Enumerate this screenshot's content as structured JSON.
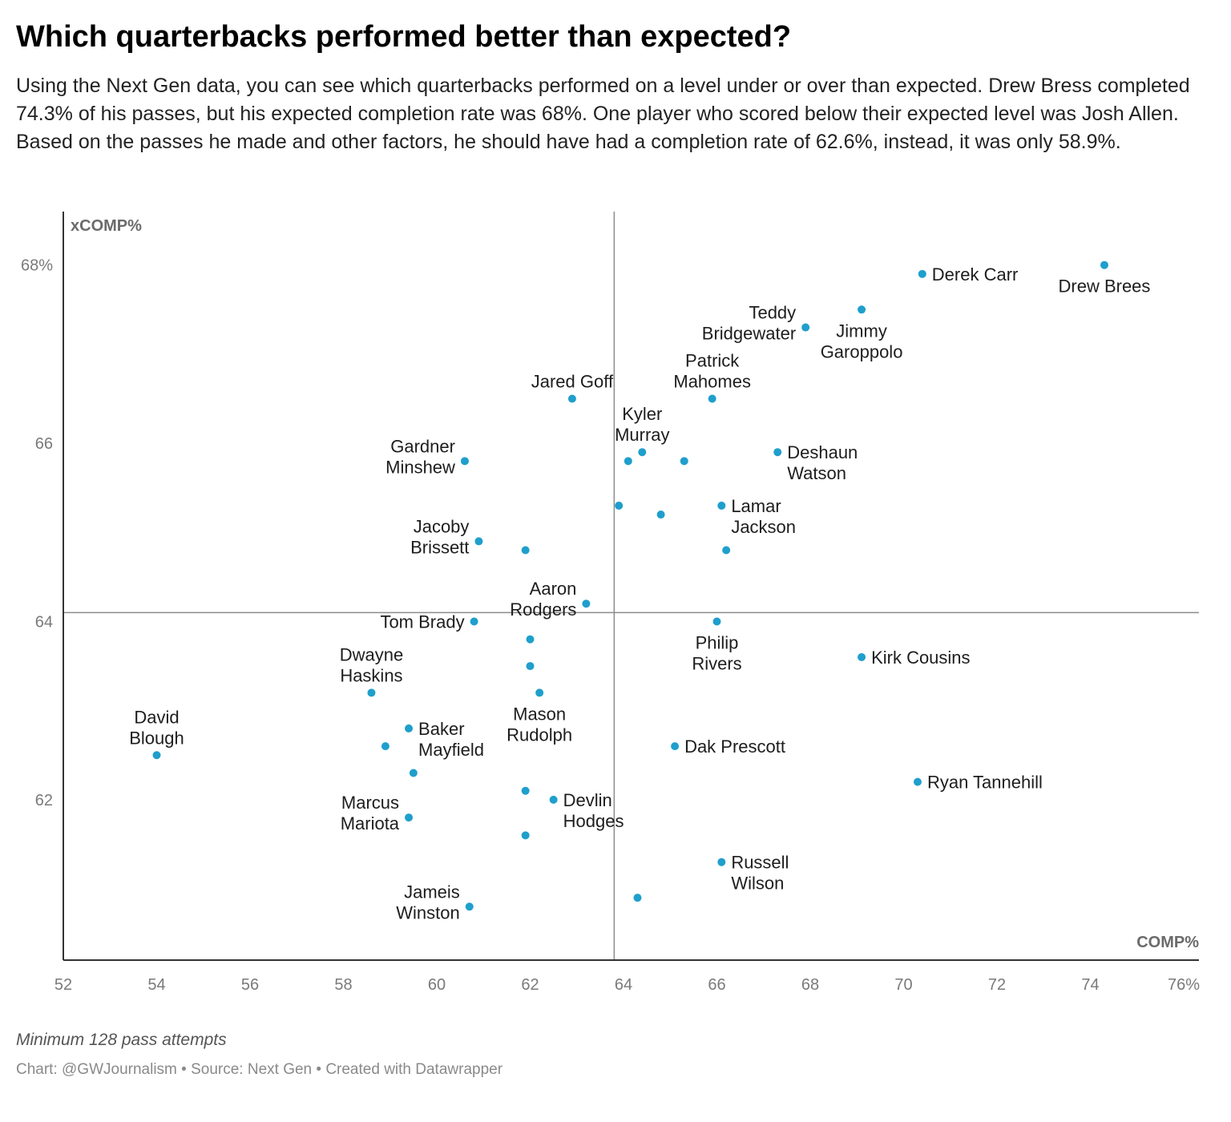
{
  "header": {
    "title": "Which quarterbacks performed better than expected?",
    "description": "Using the Next Gen data, you can see which quarterbacks performed on a level under or over than expected. Drew Bress completed 74.3% of his passes, but his expected completion rate was 68%. One player who scored below their expected level was Josh Allen. Based on the passes he made and other factors, he should have had a completion rate of 62.6%, instead, it was only 58.9%."
  },
  "footer": {
    "notes": "Minimum 128 pass attempts",
    "byline": "Chart: @GWJournalism • Source: Next Gen • Created with Datawrapper"
  },
  "colors": {
    "dot": "#1f9fcc",
    "axis": "#333333",
    "reference_line": "#8c8c8c",
    "tick_label": "#7a7a7a",
    "axis_title": "#6b6b6b",
    "point_label": "#1d1d1d"
  },
  "chart_data": {
    "type": "scatter",
    "xlabel": "COMP%",
    "ylabel": "xCOMP%",
    "xlim": [
      52,
      76
    ],
    "ylim": [
      60.2,
      68.6
    ],
    "x_ticks": [
      {
        "value": 52,
        "label": "52"
      },
      {
        "value": 54,
        "label": "54"
      },
      {
        "value": 56,
        "label": "56"
      },
      {
        "value": 58,
        "label": "58"
      },
      {
        "value": 60,
        "label": "60"
      },
      {
        "value": 62,
        "label": "62"
      },
      {
        "value": 64,
        "label": "64"
      },
      {
        "value": 66,
        "label": "66"
      },
      {
        "value": 68,
        "label": "68"
      },
      {
        "value": 70,
        "label": "70"
      },
      {
        "value": 72,
        "label": "72"
      },
      {
        "value": 74,
        "label": "74"
      },
      {
        "value": 76,
        "label": "76%"
      }
    ],
    "y_ticks": [
      {
        "value": 62,
        "label": "62"
      },
      {
        "value": 64,
        "label": "64"
      },
      {
        "value": 66,
        "label": "66"
      },
      {
        "value": 68,
        "label": "68%"
      }
    ],
    "reference_lines": {
      "x": 63.8,
      "y": 64.1
    },
    "grid": false,
    "points": [
      {
        "name": "Drew Brees",
        "x": 74.3,
        "y": 68.0,
        "label": [
          "Drew Brees"
        ],
        "label_pos": "below"
      },
      {
        "name": "Derek Carr",
        "x": 70.4,
        "y": 67.9,
        "label": [
          "Derek Carr"
        ],
        "label_pos": "right"
      },
      {
        "name": "Jimmy Garoppolo",
        "x": 69.1,
        "y": 67.5,
        "label": [
          "Jimmy",
          "Garoppolo"
        ],
        "label_pos": "below"
      },
      {
        "name": "Teddy Bridgewater",
        "x": 67.9,
        "y": 67.3,
        "label": [
          "Teddy",
          "Bridgewater"
        ],
        "label_pos": "left"
      },
      {
        "name": "Patrick Mahomes",
        "x": 65.9,
        "y": 66.5,
        "label": [
          "Patrick",
          "Mahomes"
        ],
        "label_pos": "above"
      },
      {
        "name": "Jared Goff",
        "x": 62.9,
        "y": 66.5,
        "label": [
          "Jared Goff"
        ],
        "label_pos": "above"
      },
      {
        "name": "Kyler Murray",
        "x": 64.4,
        "y": 65.9,
        "label": [
          "Kyler",
          "Murray"
        ],
        "label_pos": "above"
      },
      {
        "name": "",
        "x": 64.1,
        "y": 65.8
      },
      {
        "name": "",
        "x": 65.3,
        "y": 65.8
      },
      {
        "name": "Deshaun Watson",
        "x": 67.3,
        "y": 65.9,
        "label": [
          "Deshaun",
          "Watson"
        ],
        "label_pos": "right"
      },
      {
        "name": "Gardner Minshew",
        "x": 60.6,
        "y": 65.8,
        "label": [
          "Gardner",
          "Minshew"
        ],
        "label_pos": "left"
      },
      {
        "name": "",
        "x": 63.9,
        "y": 65.3
      },
      {
        "name": "",
        "x": 64.8,
        "y": 65.2
      },
      {
        "name": "Lamar Jackson",
        "x": 66.1,
        "y": 65.3,
        "label": [
          "Lamar",
          "Jackson"
        ],
        "label_pos": "right"
      },
      {
        "name": "Jacoby Brissett",
        "x": 60.9,
        "y": 64.9,
        "label": [
          "Jacoby",
          "Brissett"
        ],
        "label_pos": "left"
      },
      {
        "name": "",
        "x": 61.9,
        "y": 64.8
      },
      {
        "name": "",
        "x": 66.2,
        "y": 64.8
      },
      {
        "name": "Aaron Rodgers",
        "x": 63.2,
        "y": 64.2,
        "label": [
          "Aaron",
          "Rodgers"
        ],
        "label_pos": "left"
      },
      {
        "name": "Tom Brady",
        "x": 60.8,
        "y": 64.0,
        "label": [
          "Tom Brady"
        ],
        "label_pos": "left"
      },
      {
        "name": "Philip Rivers",
        "x": 66.0,
        "y": 64.0,
        "label": [
          "Philip",
          "Rivers"
        ],
        "label_pos": "below"
      },
      {
        "name": "",
        "x": 62.0,
        "y": 63.8
      },
      {
        "name": "Kirk Cousins",
        "x": 69.1,
        "y": 63.6,
        "label": [
          "Kirk Cousins"
        ],
        "label_pos": "right"
      },
      {
        "name": "",
        "x": 62.0,
        "y": 63.5
      },
      {
        "name": "Dwayne Haskins",
        "x": 58.6,
        "y": 63.2,
        "label": [
          "Dwayne",
          "Haskins"
        ],
        "label_pos": "above"
      },
      {
        "name": "Mason Rudolph",
        "x": 62.2,
        "y": 63.2,
        "label": [
          "Mason",
          "Rudolph"
        ],
        "label_pos": "below"
      },
      {
        "name": "Baker Mayfield",
        "x": 59.4,
        "y": 62.8,
        "label": [
          "Baker",
          "Mayfield"
        ],
        "label_pos": "right"
      },
      {
        "name": "",
        "x": 58.9,
        "y": 62.6
      },
      {
        "name": "David Blough",
        "x": 54.0,
        "y": 62.5,
        "label": [
          "David",
          "Blough"
        ],
        "label_pos": "above"
      },
      {
        "name": "Dak Prescott",
        "x": 65.1,
        "y": 62.6,
        "label": [
          "Dak Prescott"
        ],
        "label_pos": "right"
      },
      {
        "name": "",
        "x": 59.5,
        "y": 62.3
      },
      {
        "name": "Ryan Tannehill",
        "x": 70.3,
        "y": 62.2,
        "label": [
          "Ryan Tannehill"
        ],
        "label_pos": "right"
      },
      {
        "name": "",
        "x": 61.9,
        "y": 62.1
      },
      {
        "name": "Devlin Hodges",
        "x": 62.5,
        "y": 62.0,
        "label": [
          "Devlin",
          "Hodges"
        ],
        "label_pos": "right"
      },
      {
        "name": "Marcus Mariota",
        "x": 59.4,
        "y": 61.8,
        "label": [
          "Marcus",
          "Mariota"
        ],
        "label_pos": "left"
      },
      {
        "name": "",
        "x": 61.9,
        "y": 61.6
      },
      {
        "name": "Russell Wilson",
        "x": 66.1,
        "y": 61.3,
        "label": [
          "Russell",
          "Wilson"
        ],
        "label_pos": "right"
      },
      {
        "name": "",
        "x": 64.3,
        "y": 60.9
      },
      {
        "name": "Jameis Winston",
        "x": 60.7,
        "y": 60.8,
        "label": [
          "Jameis",
          "Winston"
        ],
        "label_pos": "left"
      }
    ]
  }
}
